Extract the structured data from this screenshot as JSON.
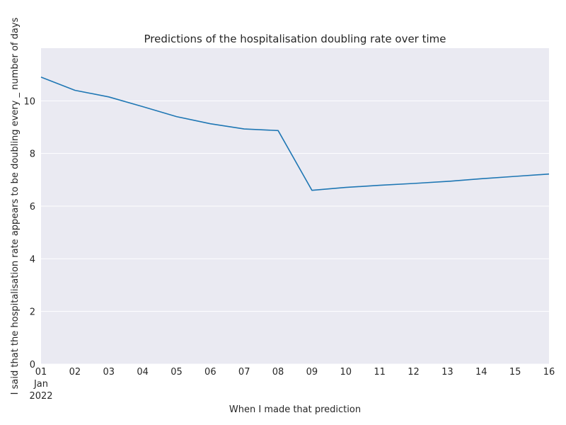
{
  "chart_data": {
    "type": "line",
    "title": "Predictions of the hospitalisation doubling rate over time",
    "xlabel": "When I made that prediction",
    "ylabel": "I said that the hospitalisation rate appears to be doubling every _ number of days",
    "x": [
      "2022-01-01",
      "2022-01-02",
      "2022-01-03",
      "2022-01-04",
      "2022-01-05",
      "2022-01-06",
      "2022-01-07",
      "2022-01-08",
      "2022-01-09",
      "2022-01-10",
      "2022-01-11",
      "2022-01-12",
      "2022-01-13",
      "2022-01-14",
      "2022-01-15",
      "2022-01-16"
    ],
    "series": [
      {
        "values": [
          10.9,
          10.4,
          10.15,
          9.78,
          9.4,
          9.13,
          8.93,
          8.87,
          6.6,
          6.71,
          6.79,
          6.86,
          6.94,
          7.04,
          7.13,
          7.22
        ],
        "color": "#1f77b4"
      }
    ],
    "xlim": [
      "2022-01-01",
      "2022-01-16"
    ],
    "ylim": [
      0,
      12
    ],
    "y_ticks": [
      0,
      2,
      4,
      6,
      8,
      10
    ],
    "x_tick_labels": [
      "01",
      "02",
      "03",
      "04",
      "05",
      "06",
      "07",
      "08",
      "09",
      "10",
      "11",
      "12",
      "13",
      "14",
      "15",
      "16"
    ],
    "x_tick_sublabel": [
      "Jan",
      "2022"
    ],
    "grid": true,
    "legend": false,
    "background": "#eaeaf2"
  }
}
